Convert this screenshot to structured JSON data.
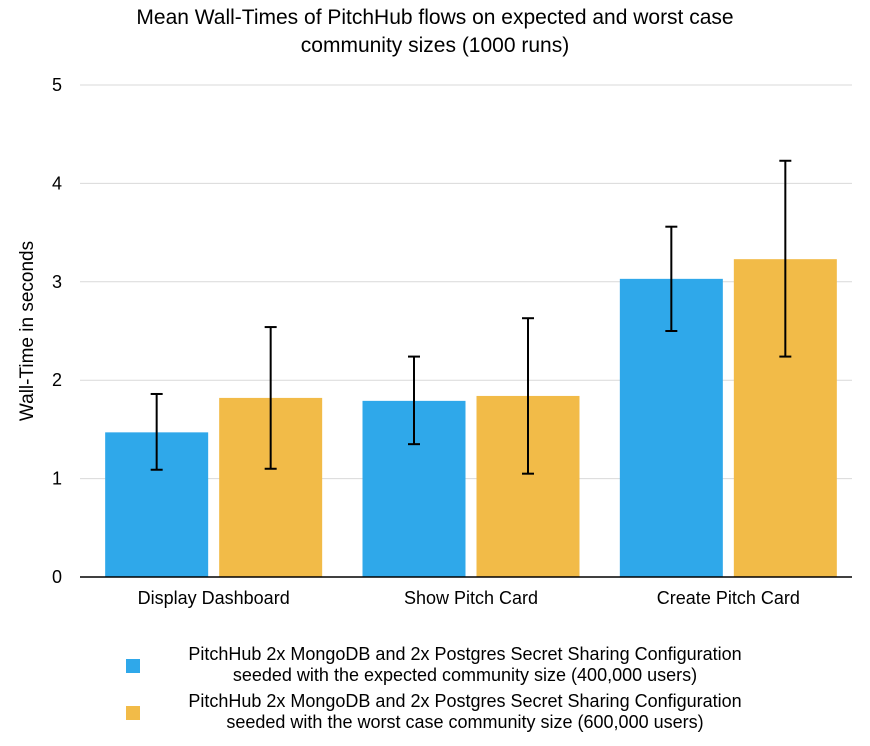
{
  "chart_data": {
    "type": "bar",
    "title_lines": [
      "Mean Wall-Times of PitchHub flows on expected and worst case",
      "community sizes (1000 runs)"
    ],
    "xlabel": "",
    "ylabel": "Wall-Time in seconds",
    "ylim": [
      0,
      5
    ],
    "yticks": [
      "0",
      "1",
      "2",
      "3",
      "4",
      "5"
    ],
    "grid": true,
    "legend_position": "bottom",
    "categories": [
      "Display Dashboard",
      "Show Pitch Card",
      "Create Pitch Card"
    ],
    "series": [
      {
        "name_lines": [
          "PitchHub 2x MongoDB and 2x Postgres Secret Sharing Configuration",
          "seeded with the expected community size (400,000 users)"
        ],
        "color": "#2fa8ea",
        "values": [
          1.47,
          1.79,
          3.03
        ],
        "error_low": [
          1.09,
          1.35,
          2.5
        ],
        "error_high": [
          1.86,
          2.24,
          3.56
        ]
      },
      {
        "name_lines": [
          "PitchHub 2x MongoDB and 2x Postgres Secret Sharing Configuration",
          "seeded with the worst case community size (600,000 users)"
        ],
        "color": "#f2bb48",
        "values": [
          1.82,
          1.84,
          3.23
        ],
        "error_low": [
          1.1,
          1.05,
          2.24
        ],
        "error_high": [
          2.54,
          2.63,
          4.23
        ]
      }
    ]
  }
}
